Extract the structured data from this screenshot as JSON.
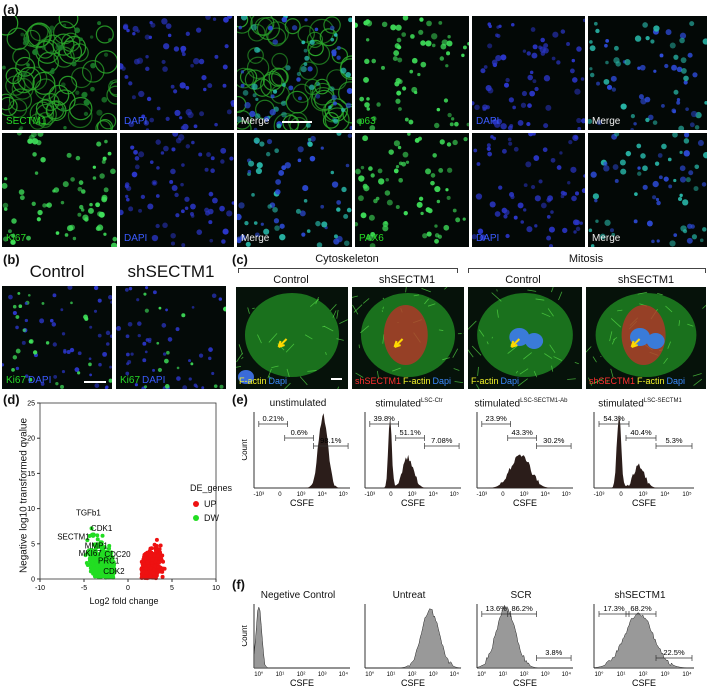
{
  "panel_labels": {
    "a": "(a)",
    "b": "(b)",
    "c": "(c)",
    "d": "(d)",
    "e": "(e)",
    "f": "(f)"
  },
  "panel_a": {
    "row1": [
      {
        "parts": [
          {
            "t": "SECTM1",
            "c": "g"
          }
        ]
      },
      {
        "parts": [
          {
            "t": "DAPI",
            "c": "b"
          }
        ]
      },
      {
        "parts": [
          {
            "t": "Merge",
            "c": "w"
          }
        ]
      },
      {
        "parts": [
          {
            "t": "p63",
            "c": "g"
          }
        ]
      },
      {
        "parts": [
          {
            "t": "DAPI",
            "c": "b"
          }
        ]
      },
      {
        "parts": [
          {
            "t": "Merge",
            "c": "w"
          }
        ]
      }
    ],
    "row2": [
      {
        "parts": [
          {
            "t": "Ki67",
            "c": "g"
          }
        ]
      },
      {
        "parts": [
          {
            "t": "DAPI",
            "c": "b"
          }
        ]
      },
      {
        "parts": [
          {
            "t": "Merge",
            "c": "w"
          }
        ]
      },
      {
        "parts": [
          {
            "t": "PAX6",
            "c": "g"
          }
        ]
      },
      {
        "parts": [
          {
            "t": "DAPI",
            "c": "b"
          }
        ]
      },
      {
        "parts": [
          {
            "t": "Merge",
            "c": "w"
          }
        ]
      }
    ]
  },
  "panel_b": {
    "titles": [
      "Control",
      "shSECTM1"
    ],
    "labels": [
      {
        "parts": [
          {
            "t": "Ki67",
            "c": "g"
          },
          {
            "t": "DAPI",
            "c": "b"
          }
        ]
      },
      {
        "parts": [
          {
            "t": "Ki67",
            "c": "g"
          },
          {
            "t": "DAPI",
            "c": "b"
          }
        ]
      }
    ]
  },
  "panel_c": {
    "groups": [
      "Cytoskeleton",
      "Mitosis"
    ],
    "subtitles": [
      "Control",
      "shSECTM1",
      "Control",
      "shSECTM1"
    ],
    "labels": [
      {
        "parts": [
          {
            "t": "F-actin",
            "c": "y"
          },
          {
            "t": "Dapi",
            "c": "b"
          }
        ]
      },
      {
        "parts": [
          {
            "t": "shSECTM1",
            "c": "r"
          },
          {
            "t": "F-actin",
            "c": "y"
          },
          {
            "t": "Dapi",
            "c": "b"
          }
        ]
      },
      {
        "parts": [
          {
            "t": "F-actin",
            "c": "y"
          },
          {
            "t": "Dapi",
            "c": "b"
          }
        ]
      },
      {
        "parts": [
          {
            "t": "shSECTM1",
            "c": "r"
          },
          {
            "t": "F-actin",
            "c": "y"
          },
          {
            "t": "Dapi",
            "c": "b"
          }
        ]
      }
    ]
  },
  "colors": {
    "up": "#ee1111",
    "dw": "#22dd22",
    "facs_fill": "#2b1d1a",
    "facs_gray": "#999999"
  },
  "chart_data": [
    {
      "type": "scatter",
      "panel": "d",
      "xlabel": "Log2 fold change",
      "ylabel": "Negative log10 transformed qvalue",
      "xlim": [
        -10,
        10
      ],
      "ylim": [
        0,
        25
      ],
      "xticks": [
        -10,
        -5,
        0,
        5,
        10
      ],
      "yticks": [
        0,
        5,
        10,
        15,
        20,
        25
      ],
      "legend_title": "DE_genes",
      "legend": [
        {
          "name": "UP",
          "color": "#ee1111"
        },
        {
          "name": "DW",
          "color": "#22dd22"
        }
      ],
      "legend_position": "right",
      "annotations": [
        {
          "label": "TGFb1",
          "x": -4.5,
          "y": 9.0
        },
        {
          "label": "CDK1",
          "x": -3.0,
          "y": 6.8
        },
        {
          "label": "SECTM1",
          "x": -6.2,
          "y": 5.6
        },
        {
          "label": "MMP1",
          "x": -3.6,
          "y": 4.3
        },
        {
          "label": "MKI67",
          "x": -4.3,
          "y": 3.3
        },
        {
          "label": "CDC20",
          "x": -1.2,
          "y": 3.1
        },
        {
          "label": "PRC1",
          "x": -2.2,
          "y": 2.2
        },
        {
          "label": "CDK2",
          "x": -1.6,
          "y": 0.7
        }
      ]
    },
    {
      "type": "histogram",
      "panel": "e",
      "xlabel": "CSFE",
      "ylabel": "Count",
      "xticks": [
        "-10³",
        "0",
        "10³",
        "10⁴",
        "10⁵"
      ],
      "plots": [
        {
          "title": "unstimulated",
          "title_sup": "",
          "gates": [
            "0.21%",
            "0.6%",
            "98.1%"
          ]
        },
        {
          "title": "stimulated",
          "title_sup": "LSC-Ctr",
          "gates": [
            "39.8%",
            "51.1%",
            "7.08%"
          ]
        },
        {
          "title": "stimulated",
          "title_sup": "LSC-SECTM1-Ab",
          "gates": [
            "23.9%",
            "43.3%",
            "30.2%"
          ]
        },
        {
          "title": "stimulated",
          "title_sup": "LSC-SECTM1",
          "gates": [
            "54.3%",
            "40.4%",
            "5.3%"
          ]
        }
      ]
    },
    {
      "type": "histogram",
      "panel": "f",
      "xlabel": "CSFE",
      "ylabel": "Count",
      "xticks": [
        "10°",
        "10¹",
        "10²",
        "10³",
        "10⁴"
      ],
      "plots": [
        {
          "title": "Negetive Control",
          "gates": []
        },
        {
          "title": "Untreat",
          "gates": []
        },
        {
          "title": "SCR",
          "gates": [
            "13.6%",
            "86.2%",
            "3.8%"
          ]
        },
        {
          "title": "shSECTM1",
          "gates": [
            "17.3%",
            "68.2%",
            "22.5%"
          ]
        }
      ]
    }
  ]
}
